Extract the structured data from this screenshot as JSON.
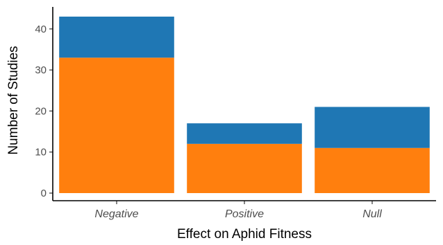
{
  "chart_data": {
    "type": "bar",
    "stacked": true,
    "categories": [
      "Negative",
      "Positive",
      "Null"
    ],
    "series": [
      {
        "values": [
          33,
          12,
          11
        ],
        "color": "#ff7f0e"
      },
      {
        "values": [
          10,
          5,
          10
        ],
        "color": "#1f77b4"
      }
    ],
    "xlabel": "Effect on Aphid Fitness",
    "ylabel": "Number of Studies",
    "ylim": [
      0,
      45
    ],
    "yticks": [
      0,
      10,
      20,
      30,
      40
    ],
    "grid": false,
    "legend": "none"
  }
}
